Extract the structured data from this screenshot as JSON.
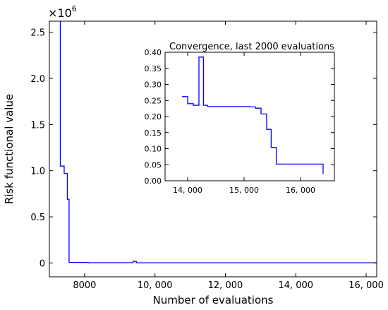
{
  "chart_data": [
    {
      "type": "line",
      "title": "",
      "xlabel": "Number of evaluations",
      "ylabel": "Risk functional value",
      "y_multiplier_label": "×10",
      "y_multiplier_exponent": "6",
      "xlim": [
        7000,
        16300
      ],
      "ylim": [
        -0.15,
        2.62
      ],
      "x_ticks": [
        8000,
        10000,
        12000,
        14000,
        16000
      ],
      "x_tick_labels": [
        "8000",
        "10, 000",
        "12, 000",
        "14, 000",
        "16, 000"
      ],
      "y_ticks": [
        0,
        0.5,
        1.0,
        1.5,
        2.0,
        2.5
      ],
      "y_tick_labels": [
        "0",
        "0.5",
        "1.0",
        "1.5",
        "2.0",
        "2.5"
      ],
      "grid": false,
      "series": [
        {
          "color": "#0000ff",
          "step": true,
          "x": [
            7270,
            7310,
            7420,
            7510,
            7560,
            8100,
            9380,
            9470,
            16300
          ],
          "y": [
            2.62,
            1.05,
            0.97,
            0.69,
            0.006,
            0.003,
            0.018,
            0.002,
            0.002
          ]
        }
      ]
    },
    {
      "type": "line",
      "title": "Convergence, last 2000 evaluations",
      "xlabel": "",
      "ylabel": "",
      "xlim": [
        13600,
        16600
      ],
      "ylim": [
        0,
        0.4
      ],
      "x_ticks": [
        14000,
        15000,
        16000
      ],
      "x_tick_labels": [
        "14, 000",
        "15, 000",
        "16, 000"
      ],
      "y_ticks": [
        0,
        0.05,
        0.1,
        0.15,
        0.2,
        0.25,
        0.3,
        0.35,
        0.4
      ],
      "y_tick_labels": [
        "0.00",
        "0.05",
        "0.10",
        "0.15",
        "0.20",
        "0.25",
        "0.30",
        "0.35",
        "0.40"
      ],
      "grid": false,
      "series": [
        {
          "color": "#0000ff",
          "step": true,
          "x": [
            13900,
            14000,
            14100,
            14200,
            14280,
            14350,
            15100,
            15200,
            15300,
            15400,
            15480,
            15570,
            16400
          ],
          "y": [
            0.262,
            0.24,
            0.235,
            0.385,
            0.235,
            0.231,
            0.23,
            0.226,
            0.208,
            0.16,
            0.104,
            0.052,
            0.021
          ]
        }
      ]
    }
  ]
}
